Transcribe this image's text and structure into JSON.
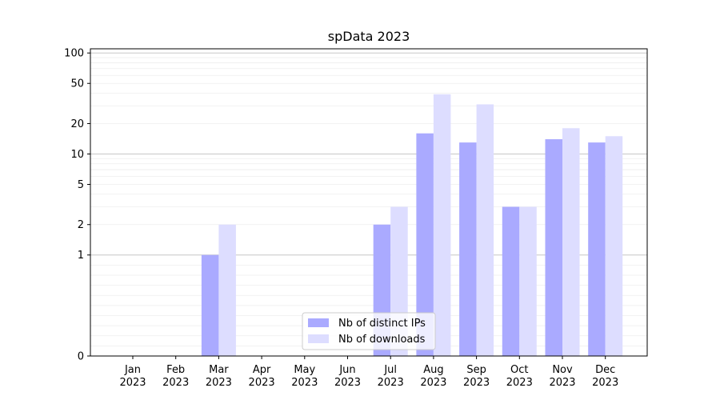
{
  "chart_data": {
    "type": "bar",
    "title": "spData 2023",
    "xlabel": "",
    "ylabel": "",
    "y_scale": "symlog",
    "ylim": [
      0,
      110
    ],
    "y_ticks": [
      0,
      1,
      2,
      5,
      10,
      20,
      50,
      100
    ],
    "grid": true,
    "legend_position": "lower-center",
    "categories": [
      "Jan 2023",
      "Feb 2023",
      "Mar 2023",
      "Apr 2023",
      "May 2023",
      "Jun 2023",
      "Jul 2023",
      "Aug 2023",
      "Sep 2023",
      "Oct 2023",
      "Nov 2023",
      "Dec 2023"
    ],
    "category_labels": [
      [
        "Jan",
        "2023"
      ],
      [
        "Feb",
        "2023"
      ],
      [
        "Mar",
        "2023"
      ],
      [
        "Apr",
        "2023"
      ],
      [
        "May",
        "2023"
      ],
      [
        "Jun",
        "2023"
      ],
      [
        "Jul",
        "2023"
      ],
      [
        "Aug",
        "2023"
      ],
      [
        "Sep",
        "2023"
      ],
      [
        "Oct",
        "2023"
      ],
      [
        "Nov",
        "2023"
      ],
      [
        "Dec",
        "2023"
      ]
    ],
    "series": [
      {
        "name": "Nb of distinct IPs",
        "color": "#aaaaff",
        "values": [
          0,
          0,
          1,
          0,
          0,
          0,
          2,
          16,
          13,
          3,
          14,
          13
        ]
      },
      {
        "name": "Nb of downloads",
        "color": "#ddddff",
        "values": [
          0,
          0,
          2,
          0,
          0,
          0,
          3,
          39,
          31,
          3,
          18,
          15
        ]
      }
    ]
  }
}
